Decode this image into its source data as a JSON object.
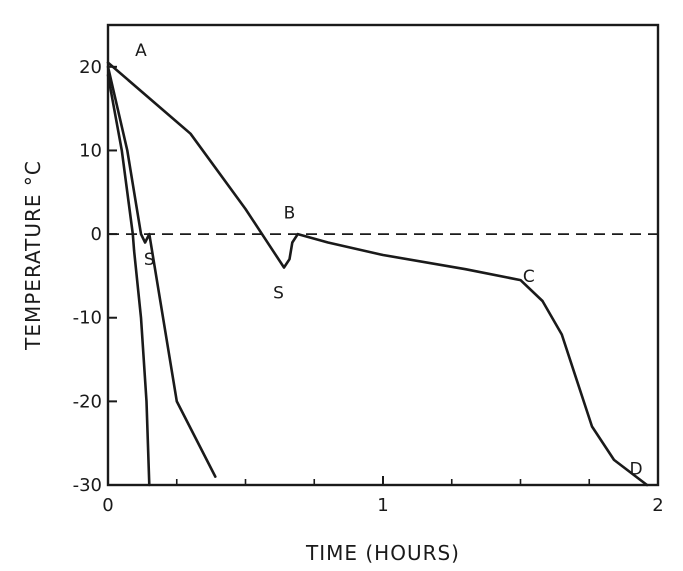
{
  "chart_data": {
    "type": "line",
    "title": "",
    "xlabel": "TIME (HOURS)",
    "ylabel": "TEMPERATURE °C",
    "xlim": [
      0,
      2
    ],
    "ylim": [
      -30,
      25
    ],
    "x_ticks": [
      {
        "value": 0,
        "label": "0"
      },
      {
        "value": 1,
        "label": "1"
      },
      {
        "value": 2,
        "label": "2"
      }
    ],
    "y_ticks": [
      {
        "value": 20,
        "label": "20"
      },
      {
        "value": 10,
        "label": "10"
      },
      {
        "value": 0,
        "label": "0"
      },
      {
        "value": -10,
        "label": "-10"
      },
      {
        "value": -20,
        "label": "-20"
      },
      {
        "value": -30,
        "label": "-30"
      }
    ],
    "reference_line": {
      "y": 0,
      "style": "dashed"
    },
    "grid": false,
    "series": [
      {
        "values": [
          [
            0.0,
            19
          ],
          [
            0.05,
            10
          ],
          [
            0.09,
            0
          ],
          [
            0.095,
            -2
          ],
          [
            0.12,
            -10
          ],
          [
            0.14,
            -20
          ],
          [
            0.15,
            -30
          ]
        ]
      },
      {
        "values": [
          [
            0.0,
            20
          ],
          [
            0.07,
            10
          ],
          [
            0.12,
            0
          ],
          [
            0.135,
            -1
          ],
          [
            0.15,
            0
          ],
          [
            0.25,
            -20
          ],
          [
            0.39,
            -29
          ]
        ]
      },
      {
        "values": [
          [
            0.0,
            20.5
          ],
          [
            0.3,
            12
          ],
          [
            0.5,
            3
          ],
          [
            0.6,
            -2
          ],
          [
            0.64,
            -4
          ],
          [
            0.66,
            -3
          ],
          [
            0.67,
            -1
          ],
          [
            0.69,
            0
          ],
          [
            0.8,
            -1
          ],
          [
            1.0,
            -2.5
          ],
          [
            1.3,
            -4.2
          ],
          [
            1.5,
            -5.5
          ],
          [
            1.58,
            -8
          ],
          [
            1.65,
            -12
          ],
          [
            1.7,
            -17
          ],
          [
            1.76,
            -23
          ],
          [
            1.84,
            -27
          ],
          [
            1.96,
            -30
          ]
        ]
      }
    ],
    "annotations": [
      {
        "text": "A",
        "x": 0.12,
        "y": 22
      },
      {
        "text": "S",
        "x": 0.15,
        "y": -3
      },
      {
        "text": "S",
        "x": 0.62,
        "y": -7
      },
      {
        "text": "B",
        "x": 0.66,
        "y": 2.6
      },
      {
        "text": "C",
        "x": 1.53,
        "y": -5
      },
      {
        "text": "D",
        "x": 1.92,
        "y": -28
      }
    ]
  }
}
